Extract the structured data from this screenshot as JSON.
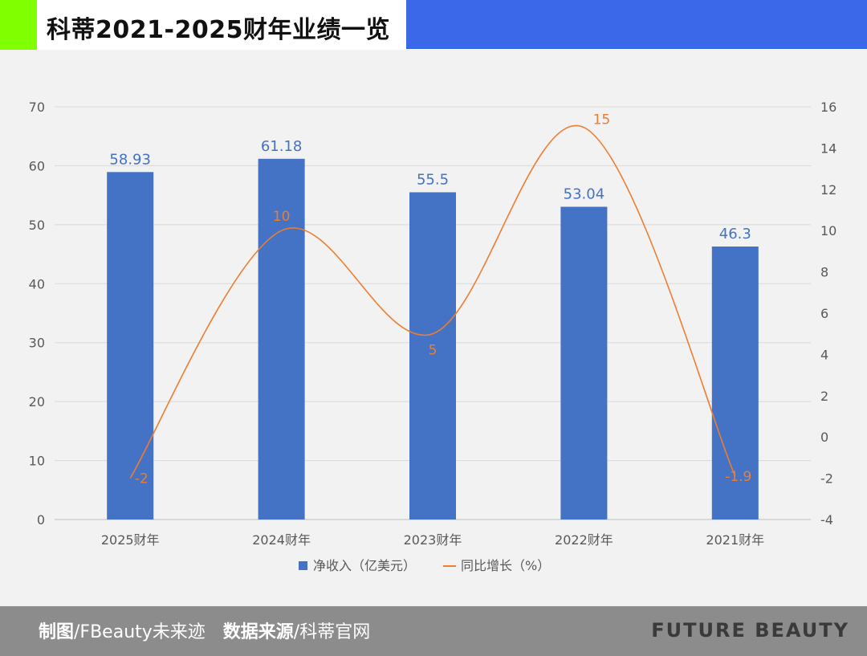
{
  "header": {
    "title": "科蒂2021-2025财年业绩一览"
  },
  "colors": {
    "accent_green": "#7fff00",
    "header_blue": "#3a68e8",
    "bar": "#4472c4",
    "line": "#ed7d31",
    "plot_bg": "#f2f2f2",
    "footer_bg": "#8c8c8c"
  },
  "footer": {
    "credit_label": "制图",
    "credit_value": "/FBeauty未来迹",
    "source_label": "数据来源",
    "source_value": "/科蒂官网",
    "brand": "FUTURE BEAUTY"
  },
  "chart_data": {
    "type": "bar",
    "categories": [
      "2025财年",
      "2024财年",
      "2023财年",
      "2022财年",
      "2021财年"
    ],
    "series": [
      {
        "name": "净收入（亿美元）",
        "type": "bar",
        "axis": "left",
        "values": [
          58.93,
          61.18,
          55.5,
          53.04,
          46.3
        ]
      },
      {
        "name": "同比增长（%）",
        "type": "line",
        "smooth": true,
        "axis": "right",
        "values": [
          -2,
          10,
          5,
          15,
          -1.9
        ]
      }
    ],
    "y_left": {
      "range": [
        0,
        70
      ],
      "ticks": [
        0,
        10,
        20,
        30,
        40,
        50,
        60,
        70
      ]
    },
    "y_right": {
      "range": [
        -4,
        16
      ],
      "ticks": [
        -4,
        -2,
        0,
        2,
        4,
        6,
        8,
        10,
        12,
        14,
        16
      ]
    },
    "grid": true,
    "legend_position": "bottom"
  }
}
